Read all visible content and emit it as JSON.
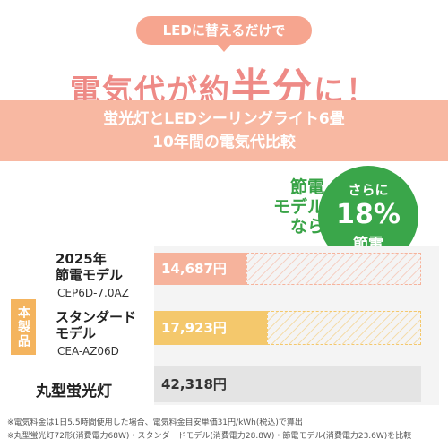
{
  "header": {
    "lead": "LEDに替えるだけで",
    "headline": [
      "電気代が約",
      "半分",
      "に！"
    ]
  },
  "banner": [
    "蛍光灯とLEDシーリングライト6畳",
    "10年間の電気代比較"
  ],
  "callout": {
    "left": [
      "節電",
      "モデル",
      "なら"
    ],
    "circle": [
      "さらに",
      "18%",
      "節電"
    ]
  },
  "tag": "本製品",
  "chart_data": {
    "type": "bar",
    "orientation": "horizontal",
    "categories": [
      "2025年\n節電モデル",
      "スタンダード\nモデル",
      "丸型蛍光灯"
    ],
    "models": [
      "CEP6D-7.0AZ",
      "CEA-AZ06D",
      null
    ],
    "values": [
      14687,
      17923,
      42318
    ],
    "value_labels": [
      "14,687円",
      "17,923円",
      "42,318円"
    ],
    "colors": [
      "#f6b39c",
      "#f4c86c",
      "#e4e4e4"
    ]
  },
  "footnotes": [
    "※電気料金は1日5.5時間使用した場合、電気料金目安単価31円/kWh(税込)で算出",
    "※丸型蛍光灯72形(消費電力68W)・スタンダードモデル(消費電力28.8W)・節電モデル(消費電力23.6W)を比較"
  ]
}
